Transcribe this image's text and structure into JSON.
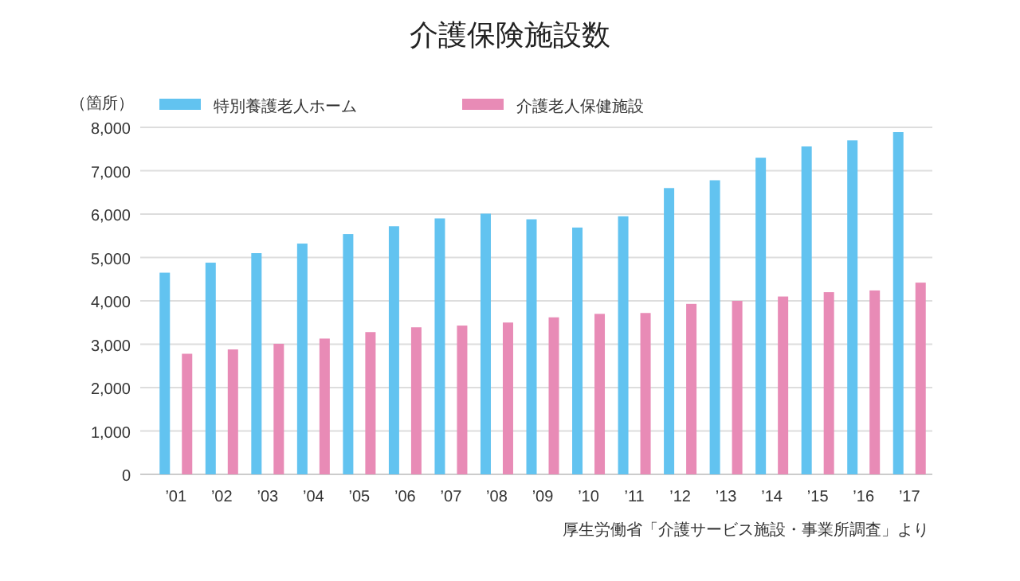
{
  "chart_data": {
    "type": "bar",
    "title": "介護保険施設数",
    "ylabel": "（箇所）",
    "categories": [
      "’01",
      "’02",
      "’03",
      "’04",
      "’05",
      "’06",
      "’07",
      "’08",
      "’09",
      "’10",
      "’11",
      "’12",
      "’13",
      "’14",
      "’15",
      "’16",
      "’17"
    ],
    "series": [
      {
        "name": "特別養護老人ホーム",
        "color": "#62c3f0",
        "values": [
          4650,
          4880,
          5100,
          5320,
          5540,
          5720,
          5900,
          6010,
          5880,
          5690,
          5950,
          6600,
          6780,
          7300,
          7560,
          7700,
          7890
        ]
      },
      {
        "name": "介護老人保健施設",
        "color": "#e88bb6",
        "values": [
          2780,
          2880,
          3010,
          3130,
          3280,
          3390,
          3430,
          3500,
          3620,
          3700,
          3720,
          3930,
          4000,
          4100,
          4200,
          4240,
          4420
        ]
      }
    ],
    "ylim": [
      0,
      8000
    ],
    "yticks": [
      {
        "value": 0,
        "label": "0"
      },
      {
        "value": 1000,
        "label": "1,000"
      },
      {
        "value": 2000,
        "label": "2,000"
      },
      {
        "value": 3000,
        "label": "3,000"
      },
      {
        "value": 4000,
        "label": "4,000"
      },
      {
        "value": 5000,
        "label": "5,000"
      },
      {
        "value": 6000,
        "label": "6,000"
      },
      {
        "value": 7000,
        "label": "7,000"
      },
      {
        "value": 8000,
        "label": "8,000"
      }
    ],
    "grid": "y",
    "legend": "top",
    "annotations": [
      "厚生労働省「介護サービス施設・事業所調査」より"
    ]
  }
}
